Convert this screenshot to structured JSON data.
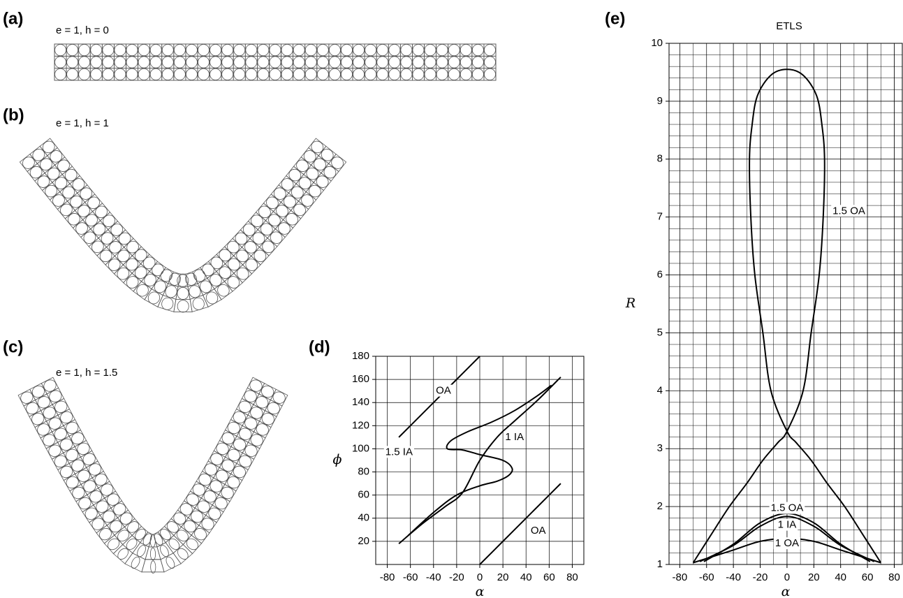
{
  "panels": [
    {
      "label": "(a)",
      "caption": "e = 1, h = 0"
    },
    {
      "label": "(b)",
      "caption": "e = 1, h = 1"
    },
    {
      "label": "(c)",
      "caption": "e = 1, h = 1.5"
    }
  ],
  "chart_data": [
    {
      "type": "line",
      "panel_label": "(d)",
      "x_label": "α",
      "y_label": "ϕ",
      "xlim": [
        -90,
        90
      ],
      "ylim": [
        0,
        180
      ],
      "xticks": [
        -80,
        -60,
        -40,
        -20,
        0,
        20,
        40,
        60,
        80
      ],
      "yticks": [
        20,
        40,
        60,
        80,
        100,
        120,
        140,
        160,
        180
      ],
      "grid": true,
      "series": [
        {
          "name": "OA",
          "color": "#000000",
          "x": [
            -70,
            -50,
            -30,
            -10,
            0
          ],
          "values": [
            110,
            130,
            150,
            170,
            180
          ]
        },
        {
          "name": "OA",
          "color": "#000000",
          "x": [
            0,
            20,
            40,
            60,
            70
          ],
          "values": [
            0,
            20,
            40,
            60,
            70
          ]
        },
        {
          "name": "1.5 IA",
          "color": "#000000",
          "x": [
            -62,
            -40,
            -20,
            0,
            15,
            25,
            28,
            20,
            0,
            -15,
            -28,
            -25,
            -10,
            10,
            30,
            50,
            62
          ],
          "values": [
            25,
            45,
            60,
            68,
            72,
            77,
            83,
            90,
            95,
            99,
            100,
            107,
            115,
            123,
            133,
            146,
            155
          ]
        },
        {
          "name": "1 IA",
          "color": "#000000",
          "x": [
            -70,
            -50,
            -30,
            -15,
            0,
            15,
            30,
            50,
            70
          ],
          "values": [
            18,
            35,
            50,
            62,
            90,
            110,
            124,
            142,
            162
          ]
        }
      ]
    },
    {
      "type": "line",
      "panel_label": "(e)",
      "title": "ETLS",
      "x_label": "α",
      "y_label": "R",
      "xlim": [
        -88,
        86
      ],
      "ylim": [
        1,
        10
      ],
      "xticks": [
        -80,
        -60,
        -40,
        -20,
        0,
        20,
        40,
        60,
        80
      ],
      "yticks": [
        1,
        2,
        3,
        4,
        5,
        6,
        7,
        8,
        9,
        10
      ],
      "grid": true,
      "minor_grid": true,
      "series": [
        {
          "name": "1.5 OA",
          "color": "#000000",
          "x": [
            -70,
            -57,
            -43,
            -30,
            -18,
            -7,
            0,
            12,
            18,
            24,
            27,
            28,
            26,
            22,
            12,
            0,
            -12,
            -22,
            -26,
            -28,
            -27,
            -24,
            -18,
            -12,
            0,
            7,
            18,
            30,
            43,
            57,
            70
          ],
          "values": [
            1.03,
            1.5,
            2,
            2.4,
            2.8,
            3.1,
            3.3,
            4,
            5,
            6,
            7,
            8,
            8.6,
            9.1,
            9.45,
            9.55,
            9.45,
            9.1,
            8.6,
            8,
            7,
            6,
            5,
            4,
            3.3,
            3.1,
            2.8,
            2.4,
            2,
            1.5,
            1.03
          ]
        },
        {
          "name": "1.5 OA",
          "color": "#000000",
          "x": [
            -62,
            -40,
            -20,
            0,
            20,
            40,
            62
          ],
          "values": [
            1.05,
            1.35,
            1.72,
            1.88,
            1.72,
            1.35,
            1.05
          ]
        },
        {
          "name": "1 IA",
          "color": "#000000",
          "x": [
            -65,
            -40,
            -20,
            0,
            20,
            40,
            65
          ],
          "values": [
            1.05,
            1.33,
            1.66,
            1.83,
            1.66,
            1.33,
            1.05
          ]
        },
        {
          "name": "1 OA",
          "color": "#000000",
          "x": [
            -70,
            -40,
            -20,
            0,
            20,
            40,
            70
          ],
          "values": [
            1.03,
            1.25,
            1.4,
            1.45,
            1.4,
            1.25,
            1.03
          ]
        }
      ]
    }
  ]
}
